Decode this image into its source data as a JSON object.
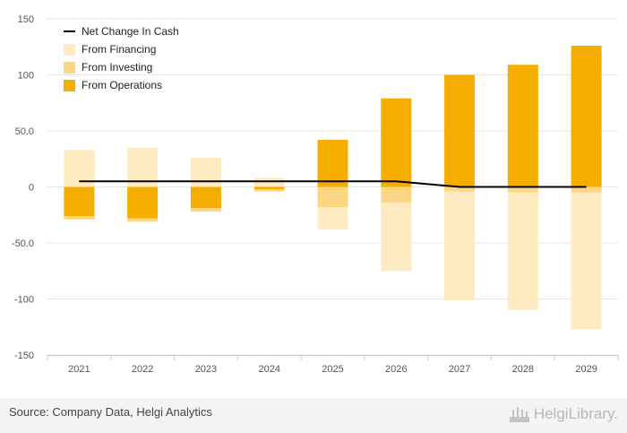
{
  "chart_data": {
    "type": "bar",
    "stacked": true,
    "categories": [
      "2021",
      "2022",
      "2023",
      "2024",
      "2025",
      "2026",
      "2027",
      "2028",
      "2029"
    ],
    "series": [
      {
        "name": "From Operations",
        "color": "#f5ae00",
        "values": [
          -26,
          -28,
          -19,
          -2,
          42,
          79,
          100,
          109,
          126
        ]
      },
      {
        "name": "From Investing",
        "color": "#fdd683",
        "values": [
          -3,
          -3,
          -3,
          -2,
          -18,
          -14,
          -4,
          -5,
          -5
        ]
      },
      {
        "name": "From Financing",
        "color": "#feebc2",
        "values": [
          33,
          35,
          26,
          8,
          -20,
          -61,
          -97,
          -105,
          -122
        ]
      },
      {
        "name": "Net Change In Cash",
        "type": "line",
        "color": "#000000",
        "values": [
          5,
          5,
          5,
          5,
          5,
          5,
          0,
          0,
          0
        ]
      }
    ],
    "ylim": [
      -150,
      150
    ],
    "yticks": [
      150,
      100,
      50,
      0,
      -50,
      -100,
      -150
    ],
    "ytick_labels": [
      "150",
      "100",
      "50.0",
      "0",
      "-50.0",
      "-100",
      "-150"
    ],
    "grid": true,
    "legend_position": "top-left",
    "legend_order": [
      "Net Change In Cash",
      "From Financing",
      "From Investing",
      "From Operations"
    ],
    "title": "",
    "xlabel": "",
    "ylabel": ""
  },
  "footer": {
    "source": "Source: Company Data, Helgi Analytics",
    "brand": "HelgiLibrary."
  },
  "colors": {
    "grid": "#e6e6e6",
    "axis": "#cccccc",
    "footer_bg": "#f4f4f4"
  }
}
